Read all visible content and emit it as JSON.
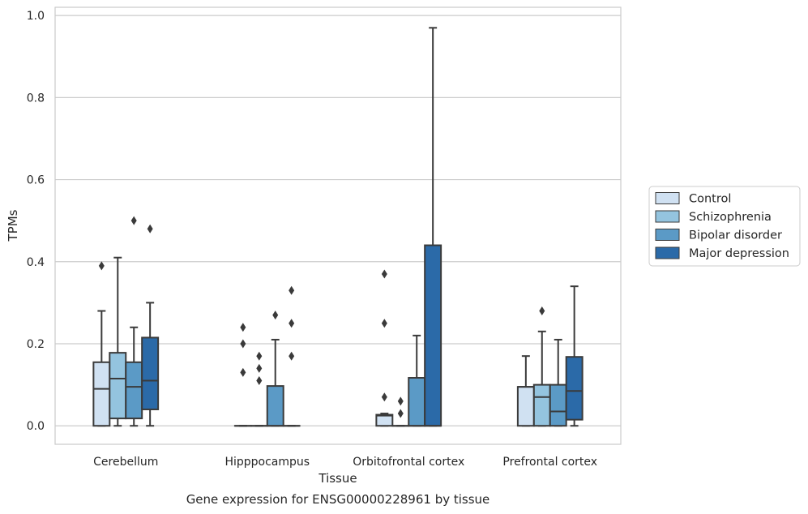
{
  "chart_data": {
    "type": "box",
    "xlabel": "Tissue",
    "ylabel": "TPMs",
    "caption": "Gene expression for ENSG00000228961 by tissue",
    "ylim": [
      -0.045,
      1.02
    ],
    "yticks": [
      0.0,
      0.2,
      0.4,
      0.6,
      0.8,
      1.0
    ],
    "ytick_labels": [
      "0.0",
      "0.2",
      "0.4",
      "0.6",
      "0.8",
      "1.0"
    ],
    "categories": [
      "Cerebellum",
      "Hipppocampus",
      "Orbitofrontal cortex",
      "Prefrontal cortex"
    ],
    "grid": "horizontal",
    "legend_position": "right",
    "series": [
      {
        "name": "Control",
        "color": "#d0e1f2",
        "boxes": [
          {
            "whisker_low": 0.0,
            "q1": 0.0,
            "median": 0.09,
            "q3": 0.155,
            "whisker_high": 0.28,
            "outliers": [
              0.39
            ]
          },
          {
            "whisker_low": 0.0,
            "q1": 0.0,
            "median": 0.0,
            "q3": 0.0,
            "whisker_high": 0.0,
            "outliers": [
              0.13,
              0.2,
              0.24
            ]
          },
          {
            "whisker_low": 0.0,
            "q1": 0.0,
            "median": 0.025,
            "q3": 0.027,
            "whisker_high": 0.03,
            "outliers": [
              0.07,
              0.25,
              0.37
            ]
          },
          {
            "whisker_low": 0.0,
            "q1": 0.0,
            "median": 0.095,
            "q3": 0.095,
            "whisker_high": 0.17,
            "outliers": []
          }
        ]
      },
      {
        "name": "Schizophrenia",
        "color": "#94c4df",
        "boxes": [
          {
            "whisker_low": 0.0,
            "q1": 0.018,
            "median": 0.115,
            "q3": 0.178,
            "whisker_high": 0.41,
            "outliers": []
          },
          {
            "whisker_low": 0.0,
            "q1": 0.0,
            "median": 0.0,
            "q3": 0.0,
            "whisker_high": 0.0,
            "outliers": [
              0.11,
              0.14,
              0.17
            ]
          },
          {
            "whisker_low": 0.0,
            "q1": 0.0,
            "median": 0.0,
            "q3": 0.0,
            "whisker_high": 0.0,
            "outliers": [
              0.03,
              0.06
            ]
          },
          {
            "whisker_low": 0.0,
            "q1": 0.0,
            "median": 0.07,
            "q3": 0.1,
            "whisker_high": 0.23,
            "outliers": [
              0.28
            ]
          }
        ]
      },
      {
        "name": "Bipolar disorder",
        "color": "#5b9ac6",
        "boxes": [
          {
            "whisker_low": 0.0,
            "q1": 0.018,
            "median": 0.095,
            "q3": 0.155,
            "whisker_high": 0.24,
            "outliers": [
              0.5
            ]
          },
          {
            "whisker_low": 0.0,
            "q1": 0.0,
            "median": 0.0,
            "q3": 0.097,
            "whisker_high": 0.21,
            "outliers": [
              0.27
            ]
          },
          {
            "whisker_low": 0.0,
            "q1": 0.0,
            "median": 0.0,
            "q3": 0.117,
            "whisker_high": 0.22,
            "outliers": []
          },
          {
            "whisker_low": 0.0,
            "q1": 0.0,
            "median": 0.035,
            "q3": 0.1,
            "whisker_high": 0.21,
            "outliers": []
          }
        ]
      },
      {
        "name": "Major depression",
        "color": "#2b6aa8",
        "boxes": [
          {
            "whisker_low": 0.0,
            "q1": 0.04,
            "median": 0.11,
            "q3": 0.215,
            "whisker_high": 0.3,
            "outliers": [
              0.48
            ]
          },
          {
            "whisker_low": 0.0,
            "q1": 0.0,
            "median": 0.0,
            "q3": 0.0,
            "whisker_high": 0.0,
            "outliers": [
              0.17,
              0.25,
              0.33
            ]
          },
          {
            "whisker_low": 0.0,
            "q1": 0.0,
            "median": 0.0,
            "q3": 0.44,
            "whisker_high": 0.97,
            "outliers": []
          },
          {
            "whisker_low": 0.0,
            "q1": 0.015,
            "median": 0.085,
            "q3": 0.168,
            "whisker_high": 0.34,
            "outliers": []
          }
        ]
      }
    ]
  }
}
